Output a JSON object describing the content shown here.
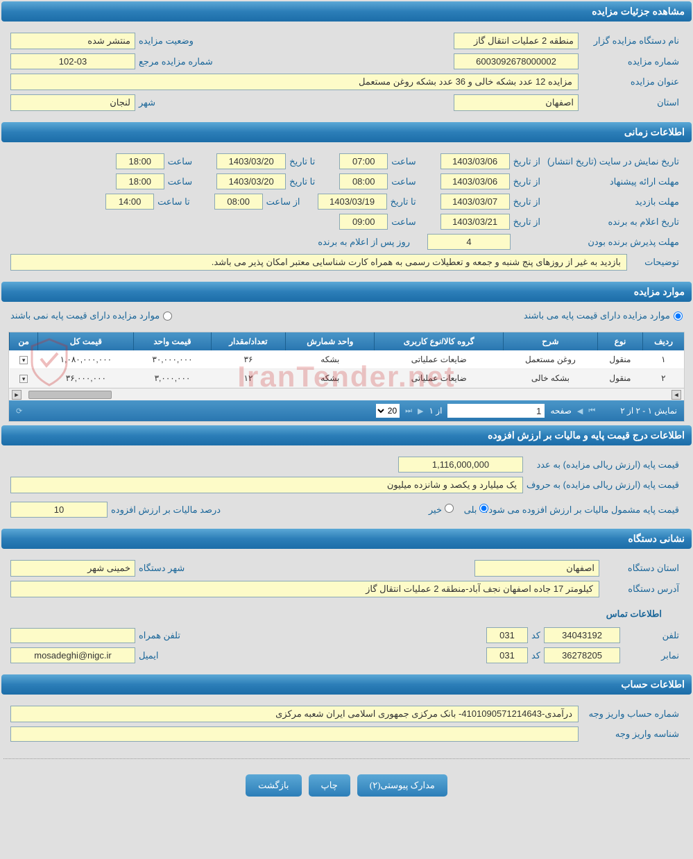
{
  "colors": {
    "header_gradient_top": "#5ba8d6",
    "header_gradient_bottom": "#1c6da8",
    "input_bg": "#fdfbc8",
    "input_border": "#8aa8b5",
    "label_color": "#1a6699",
    "page_bg": "#e0e0e0",
    "watermark_color": "rgba(200,40,40,0.25)"
  },
  "sections": {
    "auction_details": "مشاهده جزئیات مزایده",
    "time_info": "اطلاعات زمانی",
    "auction_items": "موارد مزایده",
    "price_tax": "اطلاعات درج قیمت پایه و مالیات بر ارزش افزوده",
    "org_address": "نشانی دستگاه",
    "account_info": "اطلاعات حساب"
  },
  "details": {
    "org_name_label": "نام دستگاه مزایده گزار",
    "org_name": "منطقه 2 عملیات انتقال گاز",
    "status_label": "وضعیت مزایده",
    "status": "منتشر شده",
    "auction_no_label": "شماره مزایده",
    "auction_no": "6003092678000002",
    "ref_no_label": "شماره مزایده مرجع",
    "ref_no": "102-03",
    "title_label": "عنوان مزایده",
    "title": "مزایده 12 عدد بشکه خالی و 36 عدد بشکه روغن مستعمل",
    "province_label": "استان",
    "province": "اصفهان",
    "city_label": "شهر",
    "city": "لنجان"
  },
  "time": {
    "display_label": "تاریخ نمایش در سایت (تاریخ انتشار)",
    "from_date_label": "از تاریخ",
    "to_date_label": "تا تاریخ",
    "hour_label": "ساعت",
    "from_hour_label": "از ساعت",
    "to_hour_label": "تا ساعت",
    "display_from_date": "1403/03/06",
    "display_from_hour": "07:00",
    "display_to_date": "1403/03/20",
    "display_to_hour": "18:00",
    "proposal_label": "مهلت ارائه پیشنهاد",
    "proposal_from_date": "1403/03/06",
    "proposal_from_hour": "08:00",
    "proposal_to_date": "1403/03/20",
    "proposal_to_hour": "18:00",
    "visit_label": "مهلت بازدید",
    "visit_from_date": "1403/03/07",
    "visit_to_date": "1403/03/19",
    "visit_from_hour": "08:00",
    "visit_to_hour": "14:00",
    "winner_label": "تاریخ اعلام به برنده",
    "winner_date": "1403/03/21",
    "winner_hour": "09:00",
    "accept_label": "مهلت پذیرش برنده بودن",
    "accept_days": "4",
    "accept_suffix": "روز پس از اعلام به برنده",
    "notes_label": "توضیحات",
    "notes": "بازدید به غیر از روزهای پنج شنبه و جمعه و تعطیلات رسمی به همراه کارت شناسایی معتبر امکان پذیر می باشد."
  },
  "items": {
    "radio_has_base": "موارد مزایده دارای قیمت پایه می باشند",
    "radio_no_base": "موارد مزایده دارای قیمت پایه نمی باشند",
    "columns": [
      "ردیف",
      "نوع",
      "شرح",
      "گروه کالا/نوع کاربری",
      "واحد شمارش",
      "تعداد/مقدار",
      "قیمت واحد",
      "قیمت کل",
      "من"
    ],
    "rows": [
      {
        "row": "۱",
        "type": "منقول",
        "desc": "روغن مستعمل",
        "group": "ضایعات عملیاتی",
        "unit": "بشکه",
        "qty": "۳۶",
        "unit_price": "۳۰,۰۰۰,۰۰۰",
        "total": "۱,۰۸۰,۰۰۰,۰۰۰",
        "mn": ""
      },
      {
        "row": "۲",
        "type": "منقول",
        "desc": "بشکه خالی",
        "group": "ضایعات عملیاتی",
        "unit": "بشکه",
        "qty": "۱۲",
        "unit_price": "۳,۰۰۰,۰۰۰",
        "total": "۳۶,۰۰۰,۰۰۰",
        "mn": ""
      }
    ],
    "pager": {
      "display": "نمایش ۱ - ۲ از ۲",
      "page_label_before": "صفحه",
      "page_value": "1",
      "page_label_after": "از ۱",
      "page_size": "20"
    }
  },
  "price": {
    "base_label": "قیمت پایه (ارزش ریالی مزایده) به عدد",
    "base_value": "1,116,000,000",
    "base_words_label": "قیمت پایه (ارزش ریالی مزایده) به حروف",
    "base_words": "یک میلیارد و یکصد و شانزده میلیون",
    "tax_q_label": "قیمت پایه مشمول مالیات بر ارزش افزوده می شود؟",
    "yes": "بلی",
    "no": "خیر",
    "tax_pct_label": "درصد مالیات بر ارزش افزوده",
    "tax_pct": "10"
  },
  "org": {
    "province_label": "استان دستگاه",
    "province": "اصفهان",
    "city_label": "شهر دستگاه",
    "city": "خمینی شهر",
    "address_label": "آدرس دستگاه",
    "address": "کیلومتر 17 جاده اصفهان نجف آباد-منطقه 2 عملیات انتقال گاز",
    "contact_header": "اطلاعات تماس",
    "phone_label": "تلفن",
    "phone": "34043192",
    "code_label": "کد",
    "phone_code": "031",
    "mobile_label": "تلفن همراه",
    "mobile": "",
    "fax_label": "نمابر",
    "fax": "36278205",
    "fax_code": "031",
    "email_label": "ایمیل",
    "email": "mosadeghi@nigc.ir"
  },
  "account": {
    "account_no_label": "شماره حساب واریز وجه",
    "account_no": "درآمدی-4101090571214643- بانک مرکزی جمهوری اسلامی ایران شعبه مرکزی",
    "deposit_id_label": "شناسه واریز وجه",
    "deposit_id": ""
  },
  "buttons": {
    "attachments": "مدارک پیوستی(۲)",
    "print": "چاپ",
    "back": "بازگشت"
  },
  "watermark": "IranTender.net"
}
